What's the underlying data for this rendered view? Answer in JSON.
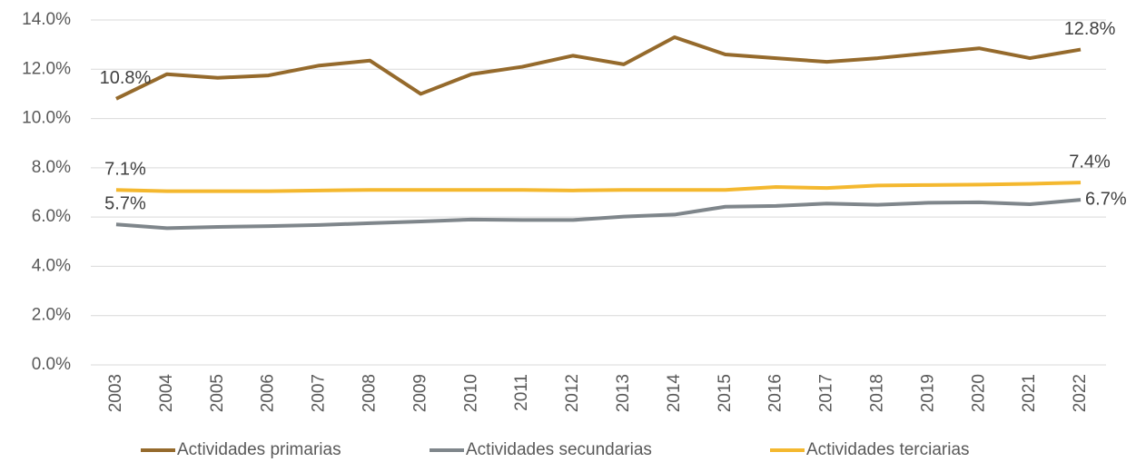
{
  "chart_data": {
    "type": "line",
    "categories": [
      "2003",
      "2004",
      "2005",
      "2006",
      "2007",
      "2008",
      "2009",
      "2010",
      "2011",
      "2012",
      "2013",
      "2014",
      "2015",
      "2016",
      "2017",
      "2018",
      "2019",
      "2020",
      "2021",
      "2022"
    ],
    "series": [
      {
        "name": "Actividades primarias",
        "color": "#956a2c",
        "values": [
          10.8,
          11.8,
          11.65,
          11.75,
          12.15,
          12.35,
          11.0,
          11.8,
          12.1,
          12.55,
          12.2,
          13.3,
          12.6,
          12.45,
          12.3,
          12.45,
          12.65,
          12.85,
          12.45,
          12.8
        ],
        "value_labels": [
          "10.8%",
          null,
          null,
          null,
          null,
          null,
          null,
          null,
          null,
          null,
          null,
          null,
          null,
          null,
          null,
          null,
          null,
          null,
          null,
          "12.8%"
        ]
      },
      {
        "name": "Actividades secundarias",
        "color": "#7f868b",
        "values": [
          5.7,
          5.55,
          5.6,
          5.63,
          5.68,
          5.75,
          5.82,
          5.9,
          5.88,
          5.88,
          6.02,
          6.1,
          6.42,
          6.45,
          6.55,
          6.5,
          6.58,
          6.6,
          6.52,
          6.7
        ],
        "value_labels": [
          "5.7%",
          null,
          null,
          null,
          null,
          null,
          null,
          null,
          null,
          null,
          null,
          null,
          null,
          null,
          null,
          null,
          null,
          null,
          null,
          "6.7%"
        ]
      },
      {
        "name": "Actividades terciarias",
        "color": "#f4b82f",
        "values": [
          7.1,
          7.05,
          7.05,
          7.05,
          7.08,
          7.1,
          7.1,
          7.1,
          7.1,
          7.08,
          7.1,
          7.1,
          7.1,
          7.22,
          7.18,
          7.28,
          7.3,
          7.32,
          7.35,
          7.4
        ],
        "value_labels": [
          "7.1%",
          null,
          null,
          null,
          null,
          null,
          null,
          null,
          null,
          null,
          null,
          null,
          null,
          null,
          null,
          null,
          null,
          null,
          null,
          "7.4%"
        ]
      }
    ],
    "ylim": [
      0,
      14
    ],
    "yticks": [
      {
        "value": 0,
        "label": "0.0%"
      },
      {
        "value": 2,
        "label": "2.0%"
      },
      {
        "value": 4,
        "label": "4.0%"
      },
      {
        "value": 6,
        "label": "6.0%"
      },
      {
        "value": 8,
        "label": "8.0%"
      },
      {
        "value": 10,
        "label": "10.0%"
      },
      {
        "value": 12,
        "label": "12.0%"
      },
      {
        "value": 14,
        "label": "14.0%"
      }
    ],
    "grid": true,
    "legend": "bottom"
  }
}
